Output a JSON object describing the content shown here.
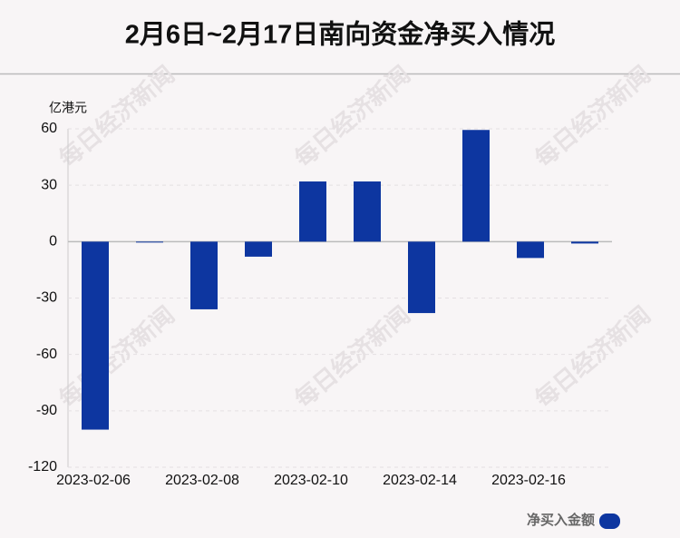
{
  "chart_data": {
    "type": "bar",
    "title": "2月6日~2月17日南向资金净买入情况",
    "y_label": "亿港元",
    "watermark": "每日经济新闻",
    "categories": [
      "2023-02-06",
      null,
      "2023-02-08",
      null,
      "2023-02-10",
      null,
      "2023-02-14",
      null,
      "2023-02-16",
      null
    ],
    "series": [
      {
        "name": "净买入金额",
        "color": "#0d36a0",
        "values": [
          -100,
          -0.3,
          -36,
          -8,
          32,
          32,
          -38,
          59.4,
          -8.7,
          -1
        ]
      }
    ],
    "ylim": [
      -120,
      60
    ],
    "yticks": [
      -120,
      -90,
      -60,
      -30,
      0,
      30,
      60
    ],
    "grid": true,
    "legend": "bottom-right"
  }
}
